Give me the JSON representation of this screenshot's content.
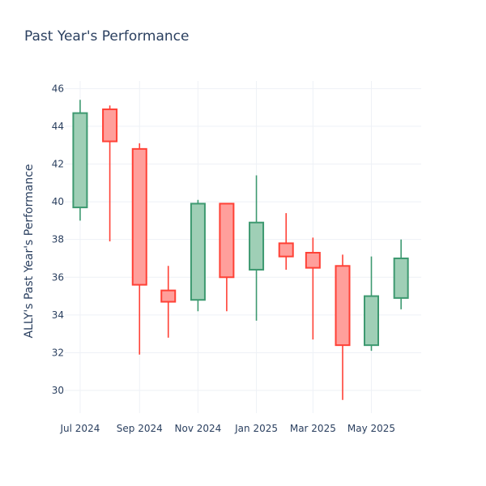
{
  "chart_data": {
    "type": "candlestick",
    "title": "Past Year's Performance",
    "xlabel": "",
    "ylabel": "ALLY's Past Year's Performance",
    "ylim": [
      28.8,
      46.4
    ],
    "xlim": [
      "2024-06-15",
      "2025-06-22"
    ],
    "yticks": [
      30,
      32,
      34,
      36,
      38,
      40,
      42,
      44,
      46
    ],
    "xticks": [
      {
        "date": "2024-07-01",
        "label": "Jul 2024"
      },
      {
        "date": "2024-09-01",
        "label": "Sep 2024"
      },
      {
        "date": "2024-11-01",
        "label": "Nov 2024"
      },
      {
        "date": "2025-01-01",
        "label": "Jan 2025"
      },
      {
        "date": "2025-03-01",
        "label": "Mar 2025"
      },
      {
        "date": "2025-05-01",
        "label": "May 2025"
      }
    ],
    "increasing_color": "#3d9970",
    "increasing_fill": "#9fcfb6",
    "decreasing_color": "#ff4136",
    "decreasing_fill": "#ff9f9b",
    "grid": true,
    "candles": [
      {
        "date": "2024-07-01",
        "open": 39.7,
        "high": 45.4,
        "low": 39.0,
        "close": 44.7
      },
      {
        "date": "2024-08-01",
        "open": 44.9,
        "high": 45.1,
        "low": 37.9,
        "close": 43.2
      },
      {
        "date": "2024-09-01",
        "open": 42.8,
        "high": 43.1,
        "low": 31.9,
        "close": 35.6
      },
      {
        "date": "2024-10-01",
        "open": 35.3,
        "high": 36.6,
        "low": 32.8,
        "close": 34.7
      },
      {
        "date": "2024-11-01",
        "open": 34.8,
        "high": 40.1,
        "low": 34.2,
        "close": 39.9
      },
      {
        "date": "2024-12-01",
        "open": 39.9,
        "high": 39.9,
        "low": 34.2,
        "close": 36.0
      },
      {
        "date": "2025-01-01",
        "open": 36.4,
        "high": 41.4,
        "low": 33.7,
        "close": 38.9
      },
      {
        "date": "2025-02-01",
        "open": 37.8,
        "high": 39.4,
        "low": 36.4,
        "close": 37.1
      },
      {
        "date": "2025-03-01",
        "open": 37.3,
        "high": 38.1,
        "low": 32.7,
        "close": 36.5
      },
      {
        "date": "2025-04-01",
        "open": 36.6,
        "high": 37.2,
        "low": 29.5,
        "close": 32.4
      },
      {
        "date": "2025-05-01",
        "open": 32.4,
        "high": 37.1,
        "low": 32.1,
        "close": 35.0
      },
      {
        "date": "2025-06-01",
        "open": 34.9,
        "high": 38.0,
        "low": 34.3,
        "close": 37.0
      }
    ]
  }
}
